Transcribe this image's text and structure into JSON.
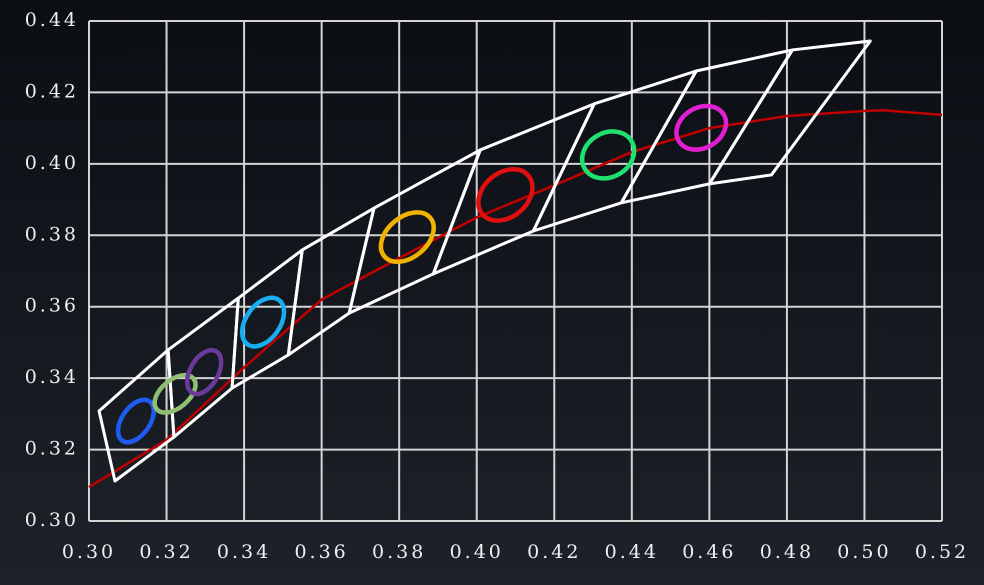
{
  "chart_data": {
    "type": "line",
    "xlim": [
      0.3,
      0.52
    ],
    "ylim": [
      0.3,
      0.44
    ],
    "xticks": [
      {
        "value": 0.3,
        "label": "0.30"
      },
      {
        "value": 0.32,
        "label": "0.32"
      },
      {
        "value": 0.34,
        "label": "0.34"
      },
      {
        "value": 0.36,
        "label": "0.36"
      },
      {
        "value": 0.38,
        "label": "0.38"
      },
      {
        "value": 0.4,
        "label": "0.40"
      },
      {
        "value": 0.42,
        "label": "0.42"
      },
      {
        "value": 0.44,
        "label": "0.44"
      },
      {
        "value": 0.46,
        "label": "0.46"
      },
      {
        "value": 0.48,
        "label": "0.48"
      },
      {
        "value": 0.5,
        "label": "0.50"
      },
      {
        "value": 0.52,
        "label": "0.52"
      }
    ],
    "yticks": [
      {
        "value": 0.3,
        "label": "0.30"
      },
      {
        "value": 0.32,
        "label": "0.32"
      },
      {
        "value": 0.34,
        "label": "0.34"
      },
      {
        "value": 0.36,
        "label": "0.36"
      },
      {
        "value": 0.38,
        "label": "0.38"
      },
      {
        "value": 0.4,
        "label": "0.40"
      },
      {
        "value": 0.42,
        "label": "0.42"
      },
      {
        "value": 0.44,
        "label": "0.44"
      }
    ],
    "grid": true,
    "series": [
      {
        "color": "#c00000",
        "x": [
          0.3,
          0.32,
          0.34,
          0.36,
          0.38,
          0.4,
          0.42,
          0.44,
          0.46,
          0.48,
          0.5,
          0.505,
          0.52
        ],
        "values": [
          0.3095,
          0.3227,
          0.343,
          0.362,
          0.3736,
          0.385,
          0.394,
          0.4033,
          0.41,
          0.4134,
          0.4148,
          0.415,
          0.4137
        ]
      }
    ],
    "quads": [
      {
        "x": [
          0.3026,
          0.3204,
          0.3219,
          0.3067
        ],
        "y": [
          0.3308,
          0.3479,
          0.3235,
          0.3112
        ]
      },
      {
        "x": [
          0.3204,
          0.3385,
          0.3369,
          0.3219
        ],
        "y": [
          0.3479,
          0.3624,
          0.3372,
          0.3235
        ]
      },
      {
        "x": [
          0.3385,
          0.355,
          0.3514,
          0.3369
        ],
        "y": [
          0.3624,
          0.3759,
          0.3465,
          0.3372
        ]
      },
      {
        "x": [
          0.355,
          0.3735,
          0.3671,
          0.3514
        ],
        "y": [
          0.3759,
          0.3876,
          0.3582,
          0.3465
        ]
      },
      {
        "x": [
          0.3735,
          0.4009,
          0.3888,
          0.3671
        ],
        "y": [
          0.3876,
          0.4039,
          0.3692,
          0.3582
        ]
      },
      {
        "x": [
          0.4009,
          0.4303,
          0.4146,
          0.3888
        ],
        "y": [
          0.4039,
          0.4168,
          0.3812,
          0.3692
        ]
      },
      {
        "x": [
          0.4303,
          0.4566,
          0.4373,
          0.4146
        ],
        "y": [
          0.4168,
          0.426,
          0.3891,
          0.3812
        ]
      },
      {
        "x": [
          0.4566,
          0.4814,
          0.46,
          0.4373
        ],
        "y": [
          0.426,
          0.4319,
          0.3944,
          0.3891
        ]
      },
      {
        "x": [
          0.4814,
          0.5015,
          0.476,
          0.46
        ],
        "y": [
          0.4319,
          0.4344,
          0.3969,
          0.3944
        ]
      }
    ],
    "quad_color": "#ffffff",
    "ellipses": [
      {
        "cx": 0.3121,
        "cy": 0.328,
        "rx": 0.0036,
        "ry": 0.0067,
        "angle": 35,
        "color": "#1e5cf0"
      },
      {
        "cx": 0.3222,
        "cy": 0.3356,
        "rx": 0.0036,
        "ry": 0.0067,
        "angle": 50,
        "color": "#8fbf70"
      },
      {
        "cx": 0.3297,
        "cy": 0.3417,
        "rx": 0.0036,
        "ry": 0.0067,
        "angle": 30,
        "color": "#6a3a9a"
      },
      {
        "cx": 0.3449,
        "cy": 0.3557,
        "rx": 0.0044,
        "ry": 0.0076,
        "angle": 35,
        "color": "#18aef0"
      },
      {
        "cx": 0.3821,
        "cy": 0.3795,
        "rx": 0.0052,
        "ry": 0.0084,
        "angle": 50,
        "color": "#f0b400"
      },
      {
        "cx": 0.4074,
        "cy": 0.3913,
        "rx": 0.0057,
        "ry": 0.0084,
        "angle": 50,
        "color": "#e01010"
      },
      {
        "cx": 0.4339,
        "cy": 0.4025,
        "rx": 0.0057,
        "ry": 0.0076,
        "angle": 60,
        "color": "#20e070"
      },
      {
        "cx": 0.4579,
        "cy": 0.4101,
        "rx": 0.0052,
        "ry": 0.0073,
        "angle": 60,
        "color": "#e020d0"
      }
    ]
  }
}
